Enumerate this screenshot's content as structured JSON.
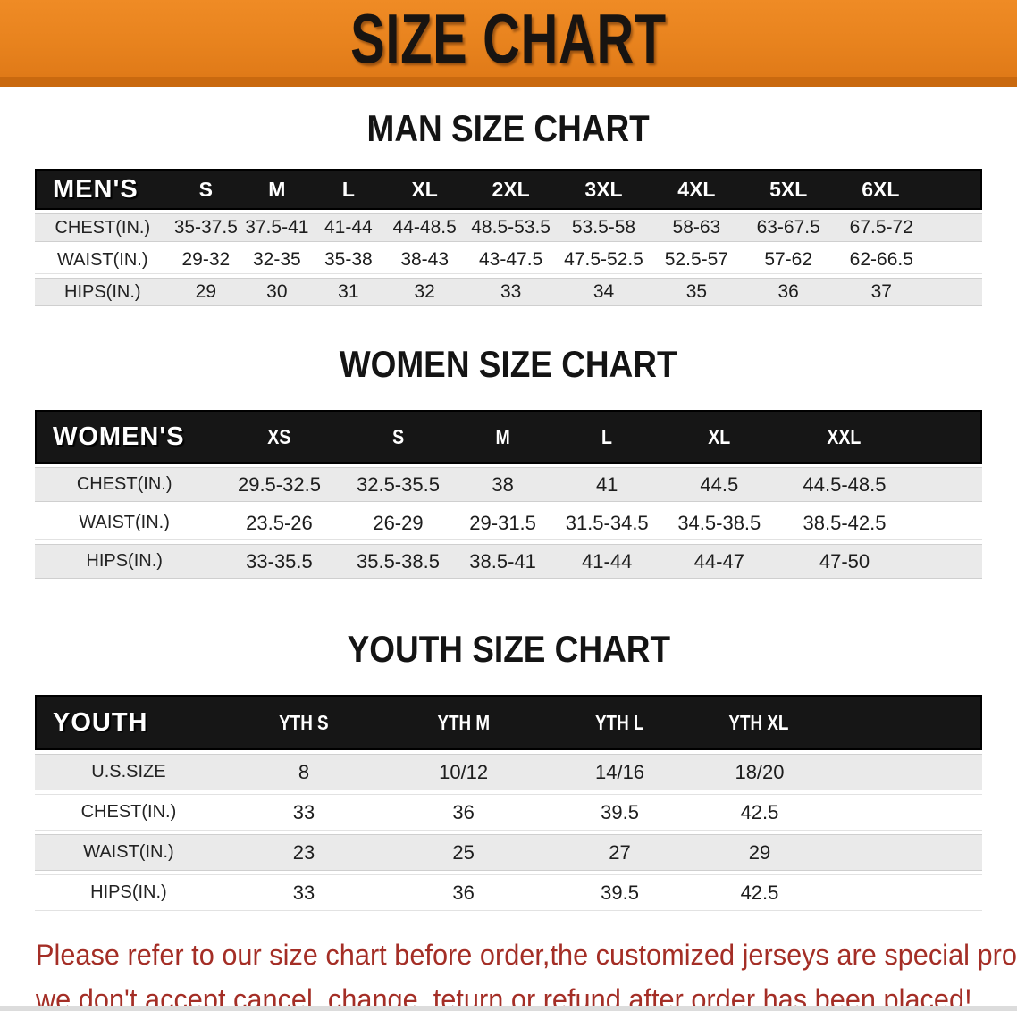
{
  "banner": {
    "title": "SIZE CHART",
    "bg_color": "#e8831e",
    "bg_dark_color": "#c9690f",
    "text_color": "#181411"
  },
  "colors": {
    "header_bar": "#161616",
    "row_stripe": "#eaeaea",
    "row_white": "#ffffff",
    "disclaimer_red": "#a42e26"
  },
  "sections": [
    {
      "heading": "MAN SIZE CHART",
      "table": {
        "header": [
          "MEN'S",
          "S",
          "M",
          "L",
          "XL",
          "2XL",
          "3XL",
          "4XL",
          "5XL",
          "6XL"
        ],
        "rows": [
          [
            "CHEST(IN.)",
            "35-37.5",
            "37.5-41",
            "41-44",
            "44-48.5",
            "48.5-53.5",
            "53.5-58",
            "58-63",
            "63-67.5",
            "67.5-72"
          ],
          [
            "WAIST(IN.)",
            "29-32",
            "32-35",
            "35-38",
            "38-43",
            "43-47.5",
            "47.5-52.5",
            "52.5-57",
            "57-62",
            "62-66.5"
          ],
          [
            "HIPS(IN.)",
            "29",
            "30",
            "31",
            "32",
            "33",
            "34",
            "35",
            "36",
            "37"
          ]
        ]
      }
    },
    {
      "heading": "WOMEN SIZE CHART",
      "table": {
        "header": [
          "WOMEN'S",
          "XS",
          "S",
          "M",
          "L",
          "XL",
          "XXL"
        ],
        "rows": [
          [
            "CHEST(IN.)",
            "29.5-32.5",
            "32.5-35.5",
            "38",
            "41",
            "44.5",
            "44.5-48.5"
          ],
          [
            "WAIST(IN.)",
            "23.5-26",
            "26-29",
            "29-31.5",
            "31.5-34.5",
            "34.5-38.5",
            "38.5-42.5"
          ],
          [
            "HIPS(IN.)",
            "33-35.5",
            "35.5-38.5",
            "38.5-41",
            "41-44",
            "44-47",
            "47-50"
          ]
        ]
      }
    },
    {
      "heading": "YOUTH SIZE CHART",
      "table": {
        "header": [
          "YOUTH",
          "YTH S",
          "YTH M",
          "YTH L",
          "YTH XL"
        ],
        "rows": [
          [
            "U.S.SIZE",
            "8",
            "10/12",
            "14/16",
            "18/20"
          ],
          [
            "CHEST(IN.)",
            "33",
            "36",
            "39.5",
            "42.5"
          ],
          [
            "WAIST(IN.)",
            "23",
            "25",
            "27",
            "29"
          ],
          [
            "HIPS(IN.)",
            "33",
            "36",
            "39.5",
            "42.5"
          ]
        ]
      }
    }
  ],
  "disclaimer": {
    "line1": "Please refer to our size chart before order,the customized jerseys are special products,",
    "line2": "we don't accept cancel, change, teturn or refund after order has been placed!"
  }
}
